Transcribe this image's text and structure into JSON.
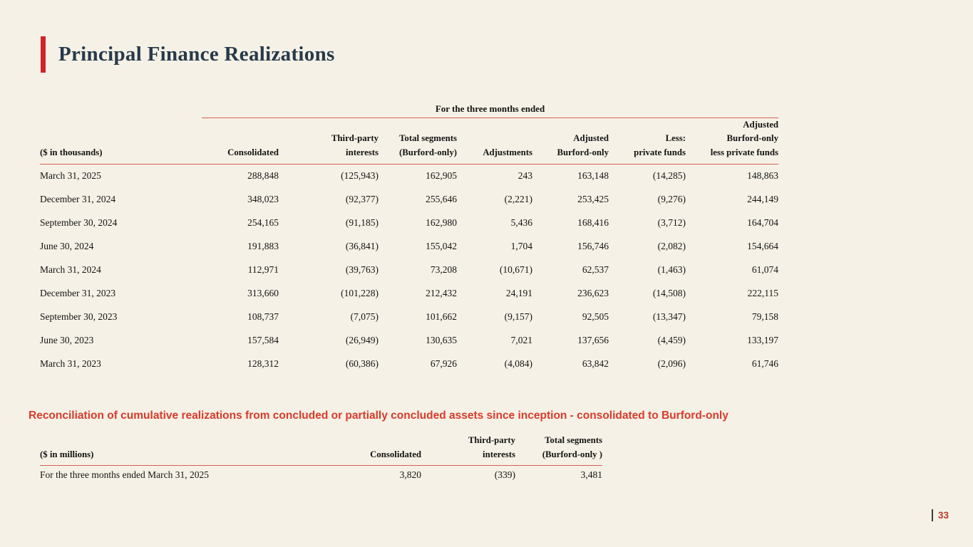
{
  "slide": {
    "title": "Principal Finance Realizations",
    "page_number": "33"
  },
  "colors": {
    "accent_red": "#d2232a",
    "rule_red": "#d65f55",
    "heading_red": "#d93a2b",
    "page_red": "#c0392b",
    "title_navy": "#273a4a",
    "background_cream": "#f5f1e6"
  },
  "main_table": {
    "span_header": "For the three months ended",
    "unit_label": "($ in thousands)",
    "columns": [
      "Consolidated",
      "Third-party\ninterests",
      "Total segments\n(Burford-only)",
      "Adjustments",
      "Adjusted\nBurford-only",
      "Less:\nprivate funds",
      "Adjusted\nBurford-only\nless private funds"
    ],
    "rows": [
      {
        "label": "March 31, 2025",
        "values": [
          "288,848",
          "(125,943)",
          "162,905",
          "243",
          "163,148",
          "(14,285)",
          "148,863"
        ]
      },
      {
        "label": "December 31, 2024",
        "values": [
          "348,023",
          "(92,377)",
          "255,646",
          "(2,221)",
          "253,425",
          "(9,276)",
          "244,149"
        ]
      },
      {
        "label": "September 30, 2024",
        "values": [
          "254,165",
          "(91,185)",
          "162,980",
          "5,436",
          "168,416",
          "(3,712)",
          "164,704"
        ]
      },
      {
        "label": "June 30, 2024",
        "values": [
          "191,883",
          "(36,841)",
          "155,042",
          "1,704",
          "156,746",
          "(2,082)",
          "154,664"
        ]
      },
      {
        "label": "March 31, 2024",
        "values": [
          "112,971",
          "(39,763)",
          "73,208",
          "(10,671)",
          "62,537",
          "(1,463)",
          "61,074"
        ]
      },
      {
        "label": "December 31, 2023",
        "values": [
          "313,660",
          "(101,228)",
          "212,432",
          "24,191",
          "236,623",
          "(14,508)",
          "222,115"
        ]
      },
      {
        "label": "September 30, 2023",
        "values": [
          "108,737",
          "(7,075)",
          "101,662",
          "(9,157)",
          "92,505",
          "(13,347)",
          "79,158"
        ]
      },
      {
        "label": "June 30, 2023",
        "values": [
          "157,584",
          "(26,949)",
          "130,635",
          "7,021",
          "137,656",
          "(4,459)",
          "133,197"
        ]
      },
      {
        "label": "March 31, 2023",
        "values": [
          "128,312",
          "(60,386)",
          "67,926",
          "(4,084)",
          "63,842",
          "(2,096)",
          "61,746"
        ]
      }
    ]
  },
  "reconciliation": {
    "heading": "Reconciliation of cumulative realizations from concluded or partially concluded assets since inception - consolidated to Burford-only",
    "unit_label": "($ in millions)",
    "columns": [
      "Consolidated",
      "Third-party\ninterests",
      "Total segments\n(Burford-only )"
    ],
    "rows": [
      {
        "label": "For the three months ended March 31, 2025",
        "values": [
          "3,820",
          "(339)",
          "3,481"
        ]
      }
    ]
  }
}
